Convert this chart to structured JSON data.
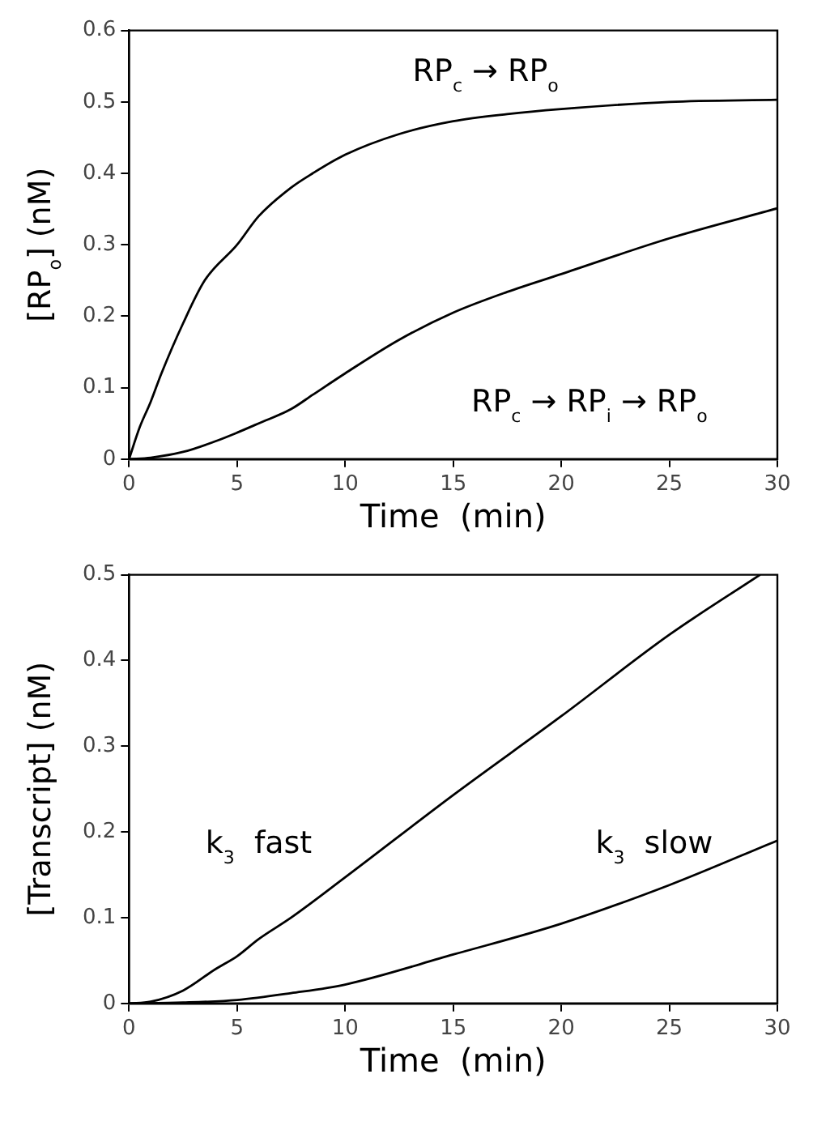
{
  "chart_data": [
    {
      "type": "line",
      "xlabel": "Time  (min)",
      "ylabel": "[RP$_{o}$] (nM)",
      "xlim": [
        0,
        30
      ],
      "ylim": [
        0,
        0.6
      ],
      "xticks": [
        0,
        5,
        10,
        15,
        20,
        25,
        30
      ],
      "yticks": [
        0,
        0.1,
        0.2,
        0.3,
        0.4,
        0.5,
        0.6
      ],
      "grid": false,
      "legend": false,
      "marker": "none",
      "line_style": "solid",
      "series": [
        {
          "name": "RP$_{c}$ → RP$_{o}$",
          "color": "#000000",
          "x": [
            0,
            0.5,
            1,
            1.5,
            2.5,
            3.5,
            5,
            6,
            7.5,
            8.5,
            10,
            12.5,
            15,
            17.5,
            20,
            25,
            30
          ],
          "values": [
            0,
            0.045,
            0.08,
            0.12,
            0.19,
            0.25,
            0.3,
            0.34,
            0.38,
            0.4,
            0.426,
            0.455,
            0.473,
            0.483,
            0.49,
            0.5,
            0.503
          ]
        },
        {
          "name": "RP$_{c}$ → RP$_{i}$ → RP$_{o}$",
          "color": "#000000",
          "x": [
            0,
            1,
            2.5,
            4,
            5,
            6,
            7.5,
            8.5,
            10,
            12.5,
            15,
            17.5,
            20,
            25,
            30
          ],
          "values": [
            0,
            0.002,
            0.01,
            0.025,
            0.037,
            0.05,
            0.07,
            0.09,
            0.12,
            0.167,
            0.205,
            0.234,
            0.259,
            0.309,
            0.351
          ]
        }
      ]
    },
    {
      "type": "line",
      "xlabel": "Time  (min)",
      "ylabel": "[Transcript] (nM)",
      "xlim": [
        0,
        30
      ],
      "ylim": [
        0,
        0.5
      ],
      "xticks": [
        0,
        5,
        10,
        15,
        20,
        25,
        30
      ],
      "yticks": [
        0,
        0.1,
        0.2,
        0.3,
        0.4,
        0.5
      ],
      "grid": false,
      "legend": false,
      "marker": "none",
      "line_style": "solid",
      "series": [
        {
          "name": "k$_{3}$  fast",
          "color": "#000000",
          "x": [
            0,
            1,
            2.5,
            4,
            5,
            6,
            7.5,
            10,
            15,
            20,
            25,
            29.2
          ],
          "values": [
            0,
            0.002,
            0.015,
            0.04,
            0.055,
            0.075,
            0.1,
            0.147,
            0.243,
            0.335,
            0.43,
            0.5
          ]
        },
        {
          "name": "k$_{3}$  slow",
          "color": "#000000",
          "x": [
            0,
            2.5,
            5,
            7.5,
            10,
            15,
            20,
            25,
            30
          ],
          "values": [
            0,
            0.001,
            0.004,
            0.012,
            0.022,
            0.057,
            0.093,
            0.138,
            0.19
          ]
        }
      ]
    }
  ]
}
